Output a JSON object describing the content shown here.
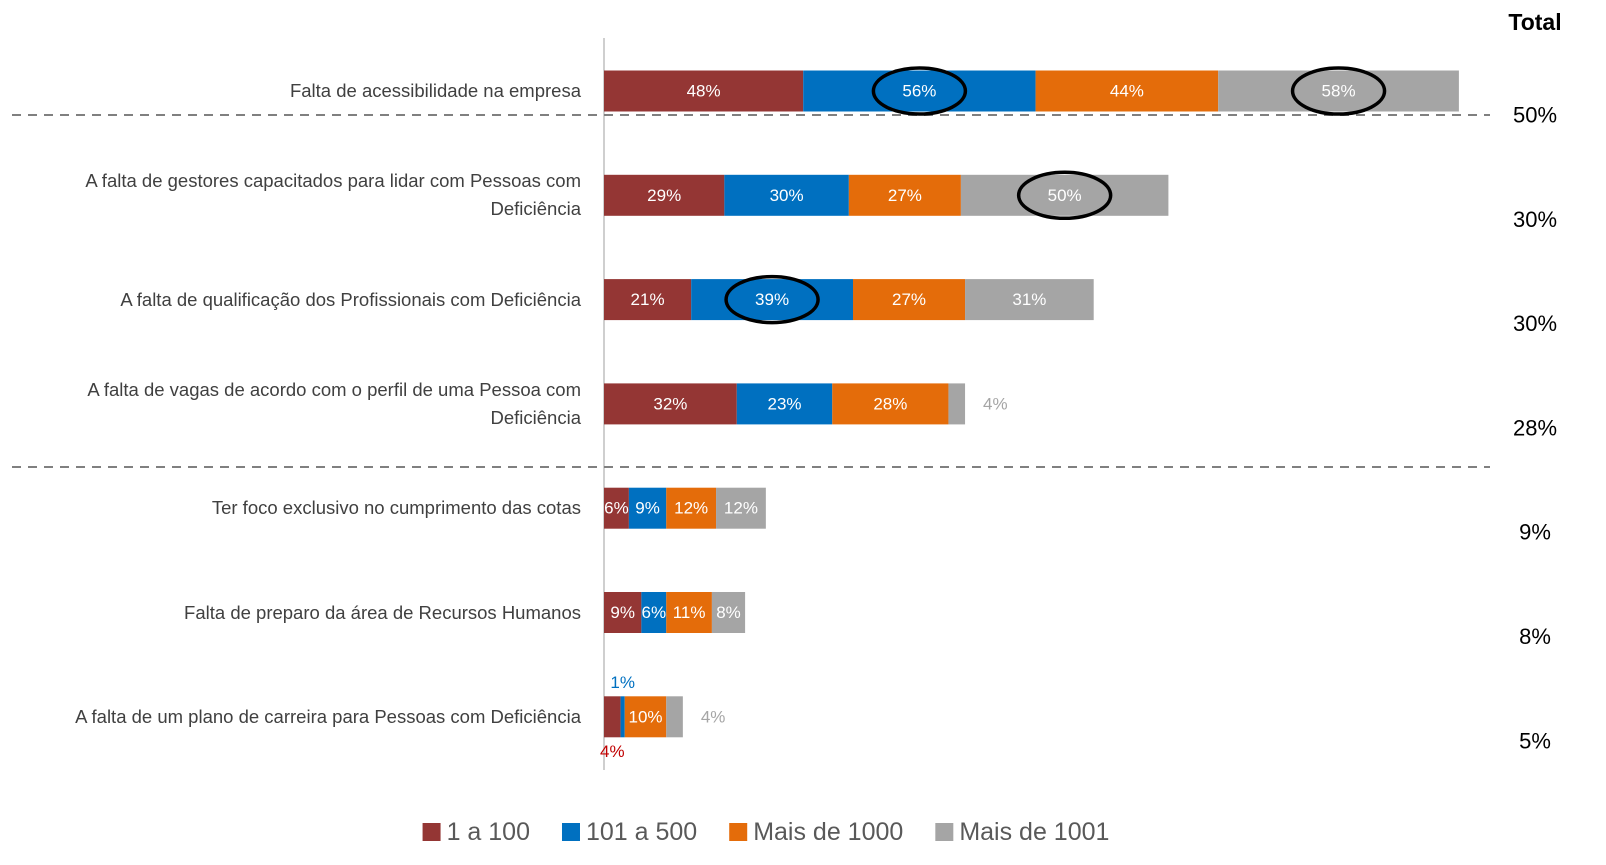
{
  "chart_data": {
    "type": "stacked-bar-horizontal",
    "categories": [
      "Falta de acessibilidade na empresa",
      "A falta de gestores capacitados para lidar com Pessoas com Deficiência",
      "A falta de qualificação dos Profissionais com Deficiência",
      "A falta de vagas de acordo com o perfil de uma Pessoa com Deficiência",
      "Ter foco exclusivo no cumprimento das cotas",
      "Falta de preparo da área de Recursos Humanos",
      "A falta de um plano de carreira para Pessoas com Deficiência"
    ],
    "series": [
      {
        "name": "1 a 100",
        "color": "#943634",
        "values": [
          48,
          29,
          21,
          32,
          6,
          9,
          4
        ],
        "value_labels": [
          "48%",
          "29%",
          "21%",
          "32%",
          "6%",
          "9%",
          "4%"
        ]
      },
      {
        "name": "101 a 500",
        "color": "#0070c0",
        "values": [
          56,
          30,
          39,
          23,
          9,
          6,
          1
        ],
        "value_labels": [
          "56%",
          "30%",
          "39%",
          "23%",
          "9%",
          "6%",
          "1%"
        ]
      },
      {
        "name": "Mais de 1000",
        "color": "#e46c0a",
        "values": [
          44,
          27,
          27,
          28,
          12,
          11,
          10
        ],
        "value_labels": [
          "44%",
          "27%",
          "27%",
          "28%",
          "12%",
          "11%",
          "10%"
        ]
      },
      {
        "name": "Mais de 1001",
        "color": "#a5a5a5",
        "values": [
          58,
          50,
          31,
          4,
          12,
          8,
          4
        ],
        "value_labels": [
          "58%",
          "50%",
          "31%",
          "4%",
          "12%",
          "8%",
          "4%"
        ]
      }
    ],
    "totals": {
      "label": "Total",
      "values": [
        50,
        30,
        30,
        28,
        9,
        8,
        5
      ],
      "value_labels": [
        "50%",
        "30%",
        "30%",
        "28%",
        "9%",
        "8%",
        "5%"
      ]
    },
    "legend": "bottom"
  }
}
